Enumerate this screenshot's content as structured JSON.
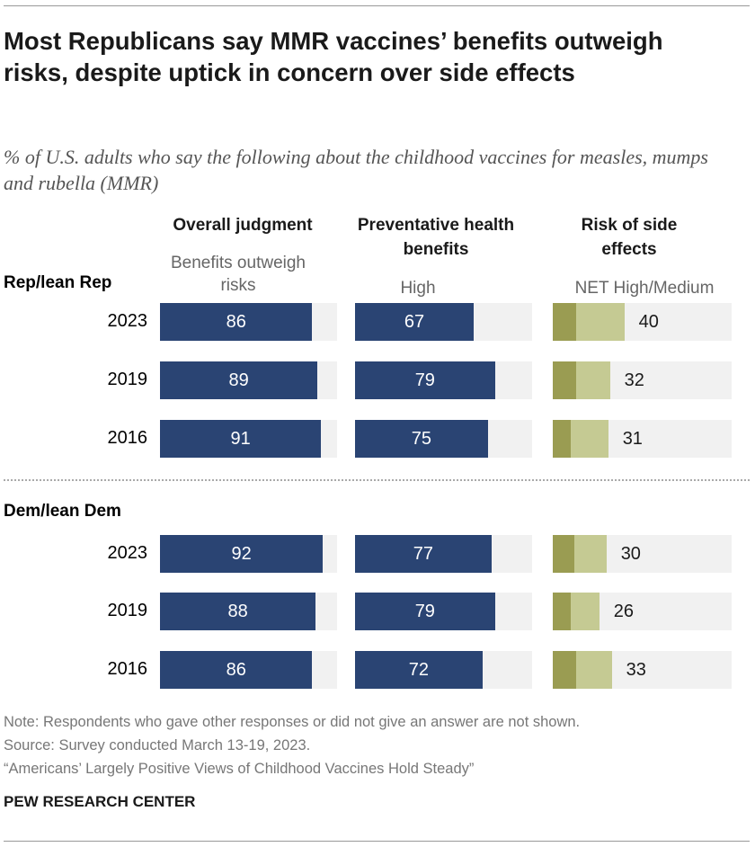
{
  "title": "Most Republicans say MMR vaccines’ benefits outweigh risks, despite uptick in concern over side effects",
  "subtitle": "% of U.S. adults who say the following about the childhood vaccines for measles, mumps and rubella (MMR)",
  "columns": [
    {
      "header": "Overall judgment",
      "sub": "Benefits outweigh risks"
    },
    {
      "header": "Preventative health benefits",
      "sub": "High"
    },
    {
      "header": "Risk of side effects",
      "sub": "NET High/Medium"
    }
  ],
  "colors": {
    "navy": "#2a4473",
    "high": "#9a9c52",
    "medium": "#c5ca93",
    "track": "#f1f1f1"
  },
  "chart_data": {
    "type": "bar",
    "xlim": [
      0,
      100
    ],
    "groups": [
      {
        "name": "Rep/lean Rep",
        "rows": [
          {
            "year": "2023",
            "overall": 86,
            "benefits": 67,
            "risk_net": 40,
            "risk_high": 13
          },
          {
            "year": "2019",
            "overall": 89,
            "benefits": 79,
            "risk_net": 32,
            "risk_high": 13
          },
          {
            "year": "2016",
            "overall": 91,
            "benefits": 75,
            "risk_net": 31,
            "risk_high": 10
          }
        ]
      },
      {
        "name": "Dem/lean Dem",
        "rows": [
          {
            "year": "2023",
            "overall": 92,
            "benefits": 77,
            "risk_net": 30,
            "risk_high": 12
          },
          {
            "year": "2019",
            "overall": 88,
            "benefits": 79,
            "risk_net": 26,
            "risk_high": 10
          },
          {
            "year": "2016",
            "overall": 86,
            "benefits": 72,
            "risk_net": 33,
            "risk_high": 13
          }
        ]
      }
    ]
  },
  "notes": {
    "note": "Note: Respondents who gave other responses or did not give an answer are not shown.",
    "source": "Source: Survey conducted March 13-19, 2023.",
    "report": "“Americans’ Largely Positive Views of Childhood Vaccines Hold Steady”"
  },
  "logo": "PEW RESEARCH CENTER"
}
